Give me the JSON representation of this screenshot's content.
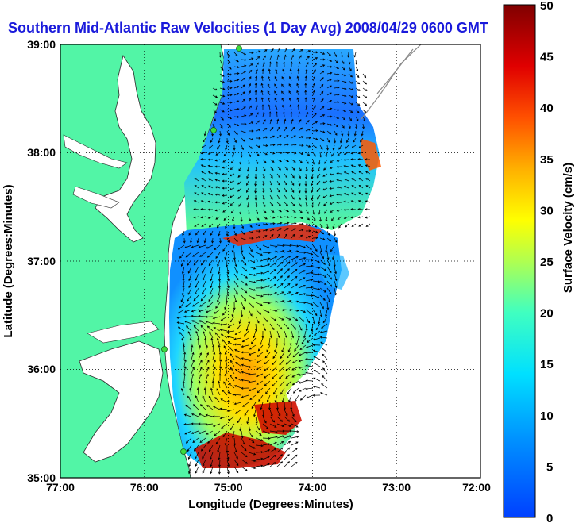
{
  "title": "Southern Mid-Atlantic Raw Velocities (1 Day Avg) 2008/04/29 0600 GMT",
  "axes": {
    "xlabel": "Longitude (Degrees:Minutes)",
    "ylabel": "Latitude (Degrees:Minutes)",
    "x_ticks": [
      "77:00",
      "76:00",
      "75:00",
      "74:00",
      "73:00",
      "72:00"
    ],
    "y_ticks": [
      "39:00",
      "38:00",
      "37:00",
      "36:00",
      "35:00"
    ]
  },
  "colorbar": {
    "label": "Surface Velocity (cm/s)",
    "ticks": [
      "50",
      "45",
      "40",
      "35",
      "30",
      "25",
      "20",
      "15",
      "10",
      "5",
      "0"
    ]
  },
  "colors": {
    "land": "#52f5a6",
    "title": "#1a1adb"
  }
}
